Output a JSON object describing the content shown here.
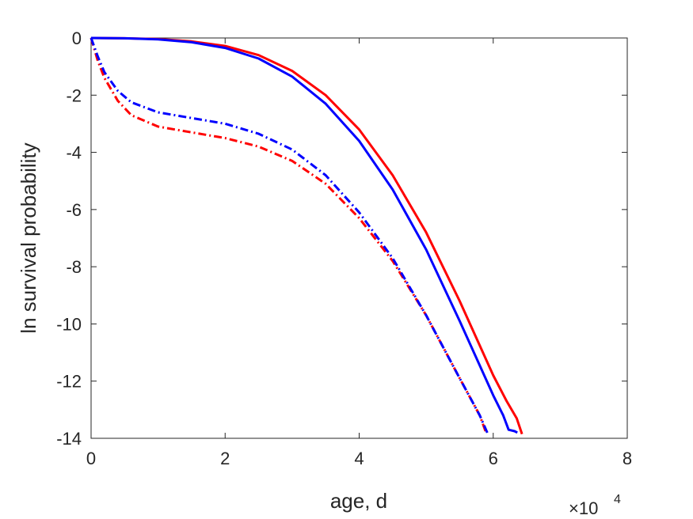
{
  "chart_data": {
    "type": "line",
    "xlabel": "age, d",
    "ylabel": "ln survival probability",
    "x_exponent_label": {
      "base": "×10",
      "exponent": "4"
    },
    "xlim": [
      0,
      80000
    ],
    "ylim": [
      -14,
      0
    ],
    "xticks": [
      0,
      20000,
      40000,
      60000,
      80000
    ],
    "xtick_labels": [
      "0",
      "2",
      "4",
      "6",
      "8"
    ],
    "yticks": [
      0,
      -2,
      -4,
      -6,
      -8,
      -10,
      -12,
      -14
    ],
    "ytick_labels": [
      "0",
      "-2",
      "-4",
      "-6",
      "-8",
      "-10",
      "-12",
      "-14"
    ],
    "grid": false,
    "legend": "none",
    "series": [
      {
        "color": "#ff0000",
        "style": "solid",
        "x": [
          0,
          5000,
          10000,
          15000,
          20000,
          25000,
          30000,
          35000,
          40000,
          45000,
          50000,
          55000,
          60000,
          62000,
          63500,
          64300
        ],
        "y": [
          0,
          -0.01,
          -0.04,
          -0.12,
          -0.28,
          -0.6,
          -1.15,
          -2.0,
          -3.2,
          -4.8,
          -6.8,
          -9.2,
          -11.8,
          -12.7,
          -13.3,
          -13.85
        ]
      },
      {
        "color": "#0000ff",
        "style": "solid",
        "x": [
          0,
          5000,
          10000,
          15000,
          20000,
          25000,
          30000,
          35000,
          40000,
          45000,
          50000,
          55000,
          60000,
          61500,
          62300,
          63200,
          63600
        ],
        "y": [
          0,
          -0.01,
          -0.05,
          -0.15,
          -0.35,
          -0.72,
          -1.35,
          -2.3,
          -3.6,
          -5.3,
          -7.4,
          -9.9,
          -12.5,
          -13.2,
          -13.7,
          -13.75,
          -13.8
        ]
      },
      {
        "color": "#ff0000",
        "style": "dashdot",
        "x": [
          0,
          1000,
          2000,
          4000,
          6000,
          10000,
          15000,
          20000,
          25000,
          30000,
          35000,
          40000,
          45000,
          50000,
          55000,
          58000,
          59000
        ],
        "y": [
          0,
          -0.8,
          -1.4,
          -2.2,
          -2.7,
          -3.1,
          -3.3,
          -3.5,
          -3.8,
          -4.3,
          -5.1,
          -6.3,
          -7.8,
          -9.7,
          -11.9,
          -13.2,
          -13.85
        ]
      },
      {
        "color": "#0000ff",
        "style": "dashdot",
        "x": [
          0,
          1000,
          2000,
          4000,
          6000,
          10000,
          15000,
          20000,
          25000,
          30000,
          35000,
          40000,
          45000,
          50000,
          55000,
          58000,
          59200
        ],
        "y": [
          0,
          -0.65,
          -1.2,
          -1.85,
          -2.25,
          -2.6,
          -2.8,
          -3.0,
          -3.35,
          -3.9,
          -4.8,
          -6.1,
          -7.7,
          -9.7,
          -11.9,
          -13.2,
          -13.85
        ]
      }
    ]
  }
}
